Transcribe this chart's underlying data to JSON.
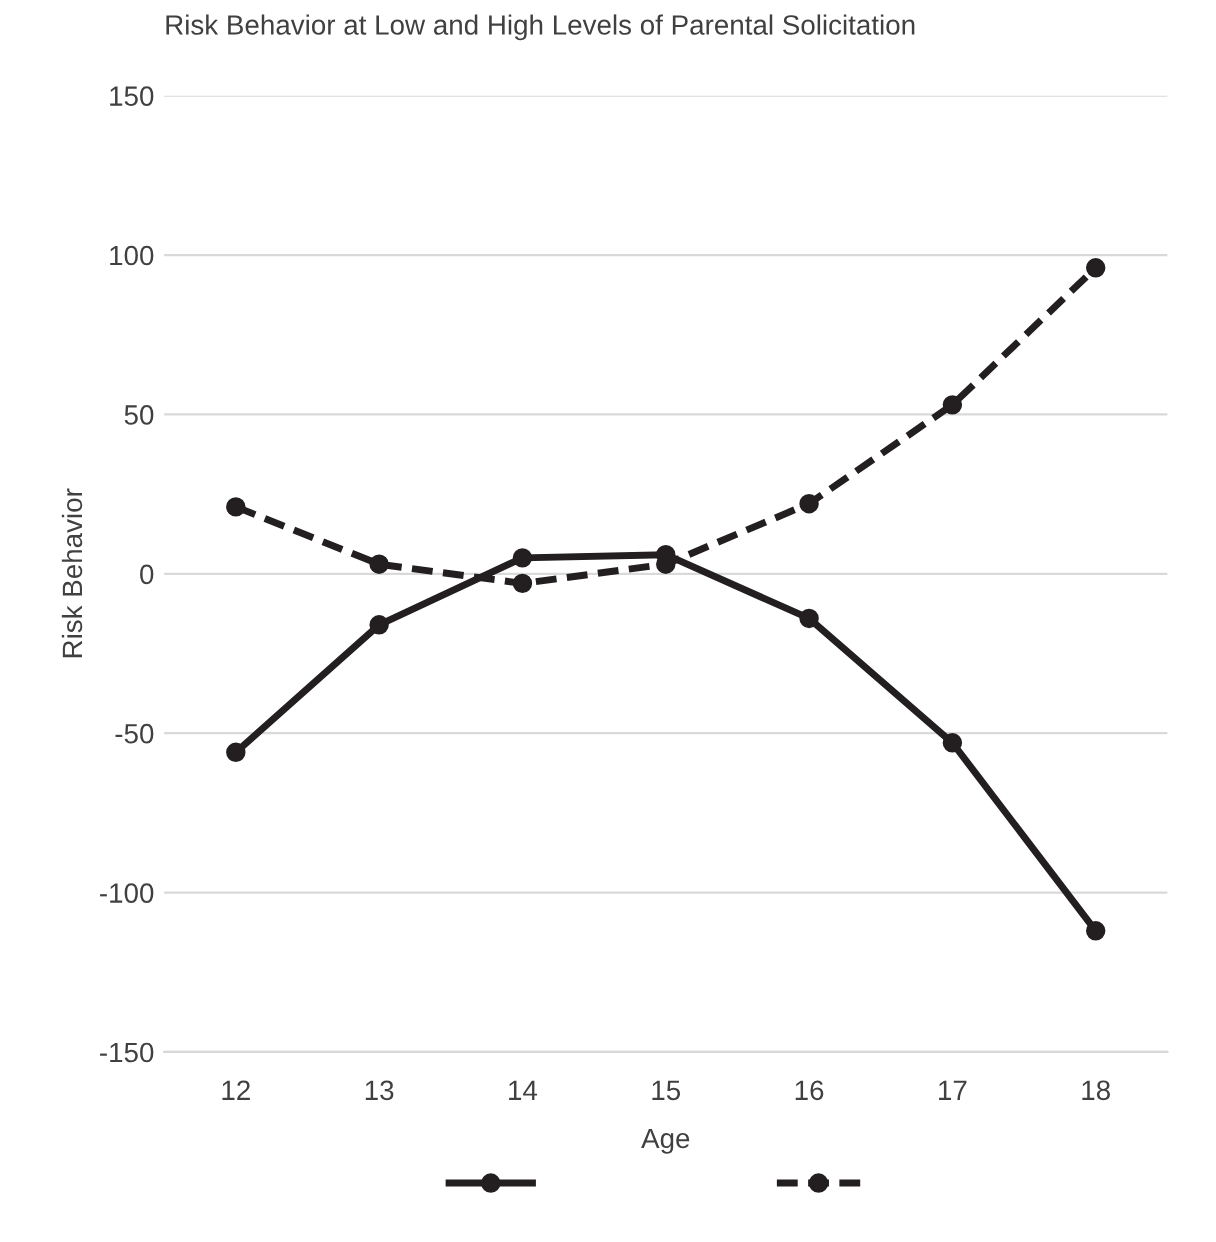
{
  "chart_data": {
    "type": "line",
    "title": "Risk Behavior at Low and High Levels of Parental Solicitation",
    "xlabel": "Age",
    "ylabel": "Risk Behavior",
    "categories": [
      "12",
      "13",
      "14",
      "15",
      "16",
      "17",
      "18"
    ],
    "series": [
      {
        "color": "#231f20",
        "line_style": "solid",
        "values": [
          -56,
          -16,
          5,
          6,
          -14,
          -53,
          -112
        ]
      },
      {
        "color": "#231f20",
        "line_style": "dashed",
        "values": [
          21,
          3,
          -3,
          3,
          22,
          53,
          96
        ]
      }
    ],
    "ylim": [
      -150,
      150
    ],
    "yticks": [
      -150,
      -100,
      -50,
      0,
      50,
      100,
      150
    ],
    "grid": "y",
    "marker": "circle"
  }
}
